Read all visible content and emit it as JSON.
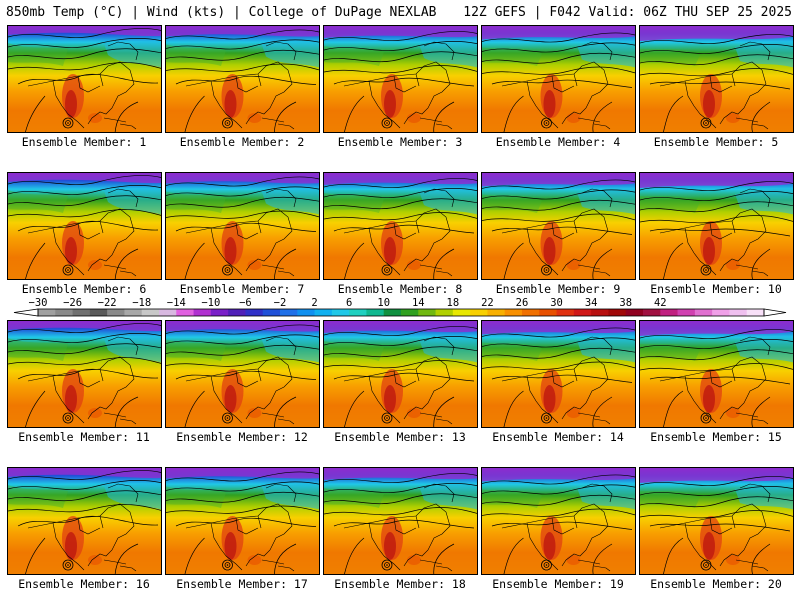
{
  "header": {
    "left_title": "850mb Temp (°C) | Wind (kts) | College of DuPage NEXLAB",
    "right_title": "12Z GEFS | F042 Valid: 06Z THU SEP 25 2025"
  },
  "members": [
    {
      "label": "Ensemble Member: 1"
    },
    {
      "label": "Ensemble Member: 2"
    },
    {
      "label": "Ensemble Member: 3"
    },
    {
      "label": "Ensemble Member: 4"
    },
    {
      "label": "Ensemble Member: 5"
    },
    {
      "label": "Ensemble Member: 6"
    },
    {
      "label": "Ensemble Member: 7"
    },
    {
      "label": "Ensemble Member: 8"
    },
    {
      "label": "Ensemble Member: 9"
    },
    {
      "label": "Ensemble Member: 10"
    },
    {
      "label": "Ensemble Member: 11"
    },
    {
      "label": "Ensemble Member: 12"
    },
    {
      "label": "Ensemble Member: 13"
    },
    {
      "label": "Ensemble Member: 14"
    },
    {
      "label": "Ensemble Member: 15"
    },
    {
      "label": "Ensemble Member: 16"
    },
    {
      "label": "Ensemble Member: 17"
    },
    {
      "label": "Ensemble Member: 18"
    },
    {
      "label": "Ensemble Member: 19"
    },
    {
      "label": "Ensemble Member: 20"
    }
  ],
  "colorbar": {
    "tick_labels": [
      "−30",
      "−26",
      "−22",
      "−18",
      "−14",
      "−10",
      "−6",
      "−2",
      "2",
      "6",
      "10",
      "14",
      "18",
      "22",
      "26",
      "30",
      "34",
      "38",
      "42"
    ],
    "colors": [
      "#a0a0a0",
      "#8a8a8a",
      "#707070",
      "#5a5a5a",
      "#8a8a8a",
      "#a8a8a8",
      "#c8c8c8",
      "#d8b8e0",
      "#e060e0",
      "#b030d0",
      "#7a20c8",
      "#5020b8",
      "#3030c8",
      "#2050d8",
      "#2070e8",
      "#1090f0",
      "#10b0f0",
      "#20c8e8",
      "#20d0c0",
      "#10b890",
      "#109040",
      "#30a020",
      "#70b810",
      "#b0d000",
      "#e8e800",
      "#f8d000",
      "#f8b000",
      "#f89000",
      "#f07000",
      "#e85000",
      "#e03010",
      "#d01818",
      "#b81010",
      "#a00808",
      "#900020",
      "#a01040",
      "#c02080",
      "#d040b0",
      "#e070d0",
      "#f0a0e8",
      "#f0c0f0",
      "#f8e0f8"
    ]
  }
}
